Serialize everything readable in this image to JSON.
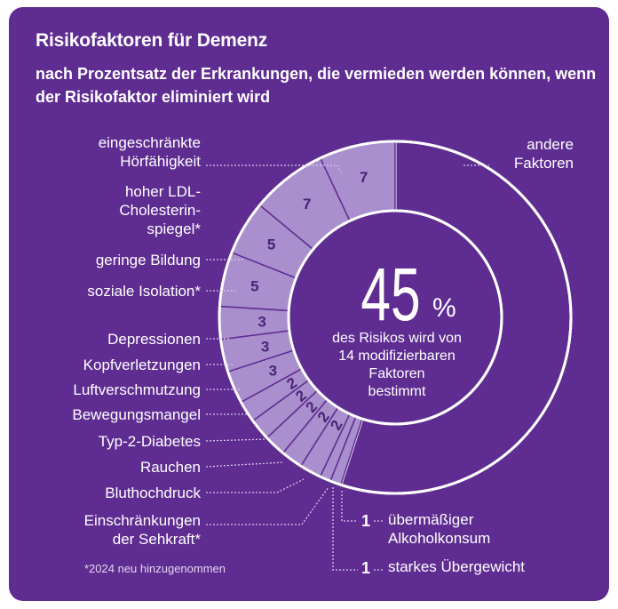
{
  "title": "Risikofaktoren für Demenz",
  "subtitle": "nach Prozentsatz der Erkrankungen, die vermieden werden können, wenn der Risikofaktor eliminiert wird",
  "center": {
    "value": "45",
    "unit": "%",
    "text_lines": [
      "des Risikos wird von",
      "14 modifizierbaren",
      "Faktoren",
      "bestimmt"
    ]
  },
  "footnote": "*2024 neu hinzugenommen",
  "other_label": [
    "andere",
    "Faktoren"
  ],
  "small_factors": [
    {
      "value": "1",
      "label_lines": [
        "übermäßiger",
        "Alkoholkonsum"
      ]
    },
    {
      "value": "1",
      "label_lines": [
        "starkes Übergewicht"
      ]
    }
  ],
  "colors": {
    "background": "#5f2c91",
    "segment_fill": "#a98fcd",
    "segment_text": "#4a2278",
    "other_fill": "#5f2c91",
    "ring_stroke": "#ffffff",
    "leader": "#d8c8ec"
  },
  "chart_data": {
    "type": "pie",
    "title": "Risikofaktoren für Demenz",
    "unit": "%",
    "total_modifiable": 45,
    "categories": [
      "eingeschränkte Hörfähigkeit",
      "hoher LDL-Cholesterinspiegel*",
      "geringe Bildung",
      "soziale Isolation*",
      "Depressionen",
      "Kopfverletzungen",
      "Luftverschmutzung",
      "Bewegungsmangel",
      "Typ-2-Diabetes",
      "Rauchen",
      "Bluthochdruck",
      "Einschränkungen der Sehkraft*",
      "übermäßiger Alkoholkonsum",
      "starkes Übergewicht",
      "andere Faktoren"
    ],
    "label_lines": [
      [
        "eingeschränkte",
        "Hörfähigkeit"
      ],
      [
        "hoher LDL-",
        "Cholesterin-",
        "spiegel*"
      ],
      [
        "geringe Bildung"
      ],
      [
        "soziale Isolation*"
      ],
      [
        "Depressionen"
      ],
      [
        "Kopfverletzungen"
      ],
      [
        "Luftverschmutzung"
      ],
      [
        "Bewegungsmangel"
      ],
      [
        "Typ-2-Diabetes"
      ],
      [
        "Rauchen"
      ],
      [
        "Bluthochdruck"
      ],
      [
        "Einschränkungen",
        "der Sehkraft*"
      ],
      [
        "übermäßiger",
        "Alkoholkonsum"
      ],
      [
        "starkes Übergewicht"
      ],
      [
        "andere",
        "Faktoren"
      ]
    ],
    "values": [
      7,
      7,
      5,
      5,
      3,
      3,
      3,
      2,
      2,
      2,
      2,
      2,
      1,
      1,
      55
    ],
    "value_labels": [
      "7",
      "7",
      "5",
      "5",
      "3",
      "3",
      "3",
      "2",
      "2",
      "2",
      "2",
      "2",
      "1",
      "1",
      ""
    ]
  }
}
